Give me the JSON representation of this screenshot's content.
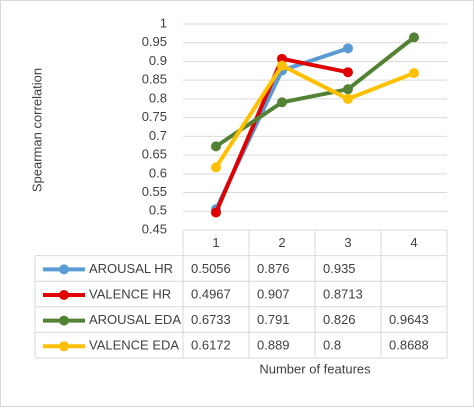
{
  "chart_data": {
    "type": "line",
    "y_label": "Spearman correlation",
    "x_label": "Number of features",
    "categories": [
      "1",
      "2",
      "3",
      "4"
    ],
    "ylim": [
      0.45,
      1
    ],
    "yticks": [
      0.45,
      0.5,
      0.55,
      0.6,
      0.65,
      0.7,
      0.75,
      0.8,
      0.85,
      0.9,
      0.95,
      1
    ],
    "grid": true,
    "series": [
      {
        "name": "AROUSAL HR",
        "color": "#5b9bd5",
        "values": [
          0.5056,
          0.876,
          0.935,
          null
        ]
      },
      {
        "name": "VALENCE HR",
        "color": "#e00000",
        "values": [
          0.4967,
          0.907,
          0.8713,
          null
        ]
      },
      {
        "name": "AROUSAL EDA",
        "color": "#548235",
        "values": [
          0.6733,
          0.791,
          0.826,
          0.9643
        ]
      },
      {
        "name": "VALENCE EDA",
        "color": "#ffc000",
        "values": [
          0.6172,
          0.889,
          0.8,
          0.8688
        ]
      }
    ]
  }
}
